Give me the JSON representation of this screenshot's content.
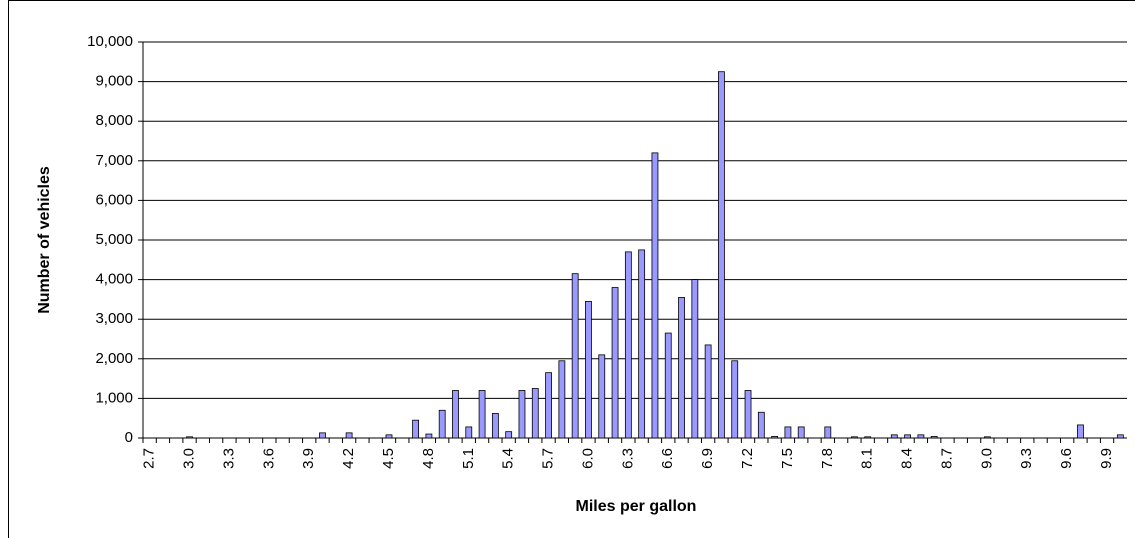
{
  "chart_data": {
    "type": "bar",
    "x_label": "Miles per gallon",
    "y_label": "Number of vehicles",
    "categories": [
      "2.7",
      null,
      null,
      "3.0",
      null,
      null,
      "3.3",
      null,
      null,
      "3.6",
      null,
      null,
      "3.9",
      null,
      null,
      "4.2",
      null,
      null,
      "4.5",
      null,
      null,
      "4.8",
      null,
      null,
      "5.1",
      null,
      null,
      "5.4",
      null,
      null,
      "5.7",
      null,
      null,
      "6.0",
      null,
      null,
      "6.3",
      null,
      null,
      "6.6",
      null,
      null,
      "6.9",
      null,
      null,
      "7.2",
      null,
      null,
      "7.5",
      null,
      null,
      "7.8",
      null,
      null,
      "8.1",
      null,
      null,
      "8.4",
      null,
      null,
      "8.7",
      null,
      null,
      "9.0",
      null,
      null,
      "9.3",
      null,
      null,
      "9.6",
      null,
      null,
      "9.9",
      null
    ],
    "values": [
      0,
      0,
      0,
      30,
      0,
      0,
      0,
      0,
      0,
      0,
      0,
      0,
      0,
      130,
      0,
      130,
      0,
      0,
      80,
      0,
      450,
      100,
      700,
      1200,
      280,
      1200,
      620,
      160,
      1200,
      1250,
      1650,
      1950,
      4150,
      3450,
      2100,
      3800,
      4700,
      4750,
      7200,
      2650,
      3550,
      4000,
      2350,
      9250,
      1950,
      1200,
      650,
      40,
      280,
      280,
      0,
      280,
      0,
      30,
      30,
      0,
      80,
      80,
      80,
      40,
      0,
      0,
      0,
      30,
      0,
      0,
      0,
      0,
      0,
      0,
      330,
      0,
      0,
      80
    ],
    "color": "#9999ff",
    "ylim": [
      0,
      10000
    ],
    "yticks": [
      0,
      {
        "value": 1000,
        "label": "1,000"
      },
      {
        "value": 2000,
        "label": "2,000"
      },
      {
        "value": 3000,
        "label": "3,000"
      },
      {
        "value": 4000,
        "label": "4,000"
      },
      {
        "value": 5000,
        "label": "5,000"
      },
      {
        "value": 6000,
        "label": "6,000"
      },
      {
        "value": 7000,
        "label": "7,000"
      },
      {
        "value": 8000,
        "label": "8,000"
      },
      {
        "value": 9000,
        "label": "9,000"
      },
      {
        "value": 10000,
        "label": "10,000"
      }
    ],
    "grid": true
  }
}
